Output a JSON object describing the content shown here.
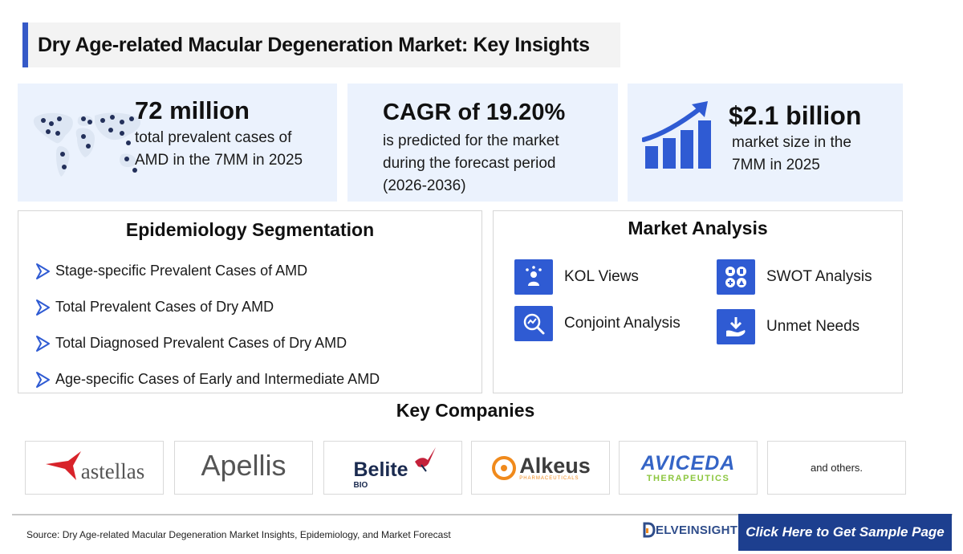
{
  "title": "Dry Age-related Macular Degeneration Market: Key Insights",
  "stats": [
    {
      "value": "72 million",
      "lines": [
        "total prevalent cases of",
        "AMD in the 7MM in 2025"
      ],
      "icon": "world-map-icon"
    },
    {
      "value": "CAGR of 19.20%",
      "lines": [
        "is predicted for the market",
        "during the forecast period",
        "(2026-2036)"
      ]
    },
    {
      "value": "$2.1 billion",
      "lines": [
        "market size in the",
        "7MM in 2025"
      ],
      "icon": "growth-chart-icon"
    }
  ],
  "epidemiology": {
    "title": "Epidemiology Segmentation",
    "items": [
      "Stage-specific Prevalent Cases of AMD",
      "Total Prevalent Cases of Dry AMD",
      "Total Diagnosed Prevalent Cases of Dry AMD",
      "Age-specific Cases of Early and Intermediate AMD"
    ]
  },
  "market_analysis": {
    "title": "Market Analysis",
    "items": [
      {
        "label": "KOL Views",
        "icon": "kol-icon"
      },
      {
        "label": "SWOT Analysis",
        "icon": "swot-icon"
      },
      {
        "label": "Conjoint Analysis",
        "icon": "conjoint-icon"
      },
      {
        "label": "Unmet Needs",
        "icon": "unmet-needs-icon"
      }
    ]
  },
  "companies": {
    "title": "Key Companies",
    "logos": {
      "astellas": "astellas",
      "apellis": "Apellis",
      "belite": "Belite",
      "belite_sub": "BIO",
      "alkeus": "Alkeus",
      "alkeus_sub": "PHARMACEUTICALS",
      "aviceda": "AVICEDA",
      "aviceda_sub": "THERAPEUTICS"
    },
    "others": "and others."
  },
  "footer": {
    "source": "Source: Dry Age-related Macular Degeneration Market Insights, Epidemiology, and Market Forecast",
    "brand": "ELVEINSIGHT",
    "cta": "Click Here to Get Sample Page"
  },
  "colors": {
    "accent": "#3559c7",
    "icon_blue": "#2f5bd3",
    "stat_bg": "#ebf2fd",
    "cta_bg": "#1d3f8f"
  }
}
